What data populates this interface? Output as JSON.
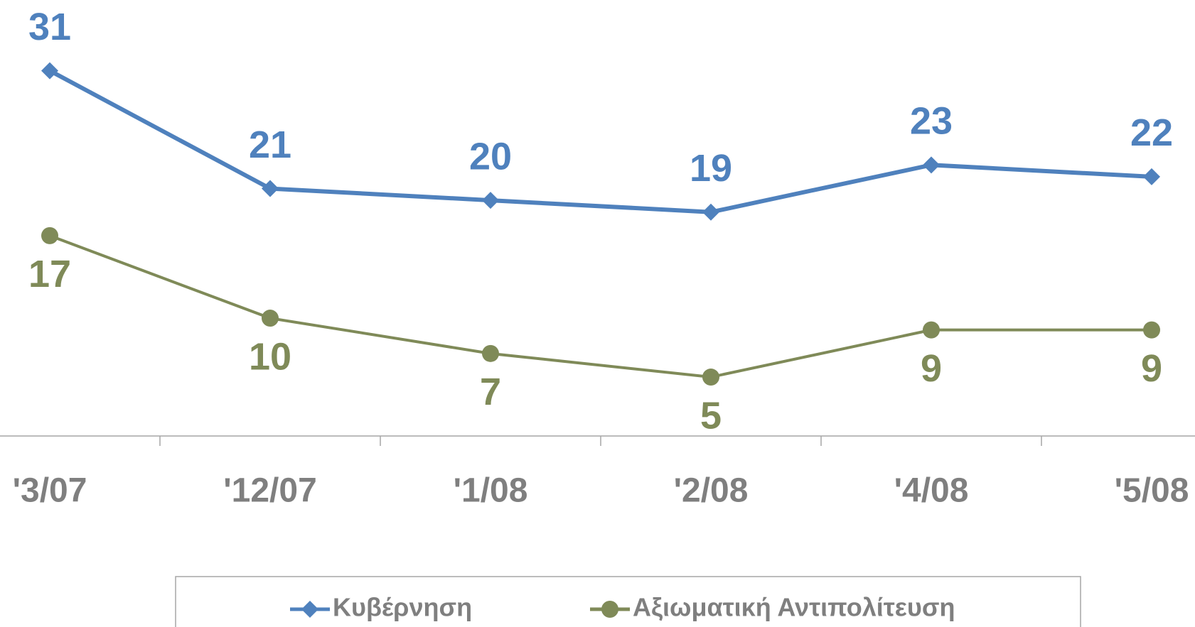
{
  "chart_data": {
    "type": "line",
    "categories": [
      "'3/07",
      "'12/07",
      "'1/08",
      "'2/08",
      "'4/08",
      "'5/08"
    ],
    "series": [
      {
        "name": "Κυβέρνηση",
        "color": "#4f81bd",
        "marker": "diamond",
        "label_position": "above",
        "values": [
          31,
          21,
          20,
          19,
          23,
          22
        ]
      },
      {
        "name": "Αξιωματική Αντιπολίτευση",
        "color": "#7f8a58",
        "marker": "circle",
        "label_position": "below",
        "values": [
          17,
          10,
          7,
          5,
          9,
          9
        ]
      }
    ],
    "ylim": [
      0,
      37
    ],
    "legend": "bottom"
  }
}
